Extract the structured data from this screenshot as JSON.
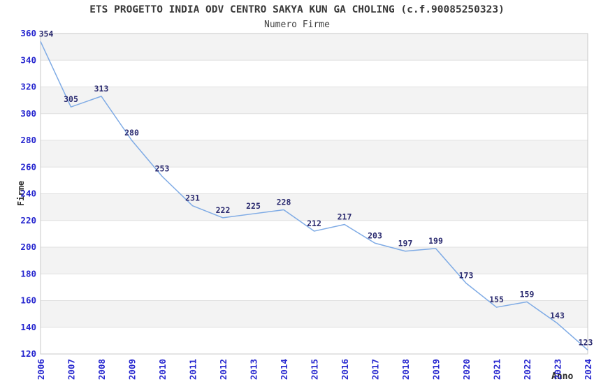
{
  "chart_data": {
    "type": "line",
    "title": "ETS PROGETTO INDIA ODV CENTRO SAKYA KUN GA CHOLING (c.f.90085250323)",
    "subtitle": "Numero Firme",
    "xlabel": "Anno",
    "ylabel": "Firme",
    "x": [
      2006,
      2007,
      2008,
      2009,
      2010,
      2011,
      2012,
      2013,
      2014,
      2015,
      2016,
      2017,
      2018,
      2019,
      2020,
      2021,
      2022,
      2023,
      2024
    ],
    "series": [
      {
        "name": "Numero Firme",
        "values": [
          354,
          305,
          313,
          280,
          253,
          231,
          222,
          225,
          228,
          212,
          217,
          203,
          197,
          199,
          173,
          155,
          159,
          143,
          123
        ]
      }
    ],
    "ylim": [
      120,
      360
    ],
    "ytick_step": 20,
    "xtick_rotation": -90,
    "grid": "horizontal",
    "bands": "alternating",
    "legend": "none",
    "data_labels": "on",
    "colors": {
      "background": "#ffffff",
      "band_fill": "#f3f3f3",
      "gridline": "#e0e0e0",
      "plot_border": "#c9c9c9",
      "line": "#7fabe5",
      "tick_label": "#2727cf",
      "data_label": "#2b2b70",
      "title_text": "#3a3a3a"
    }
  }
}
